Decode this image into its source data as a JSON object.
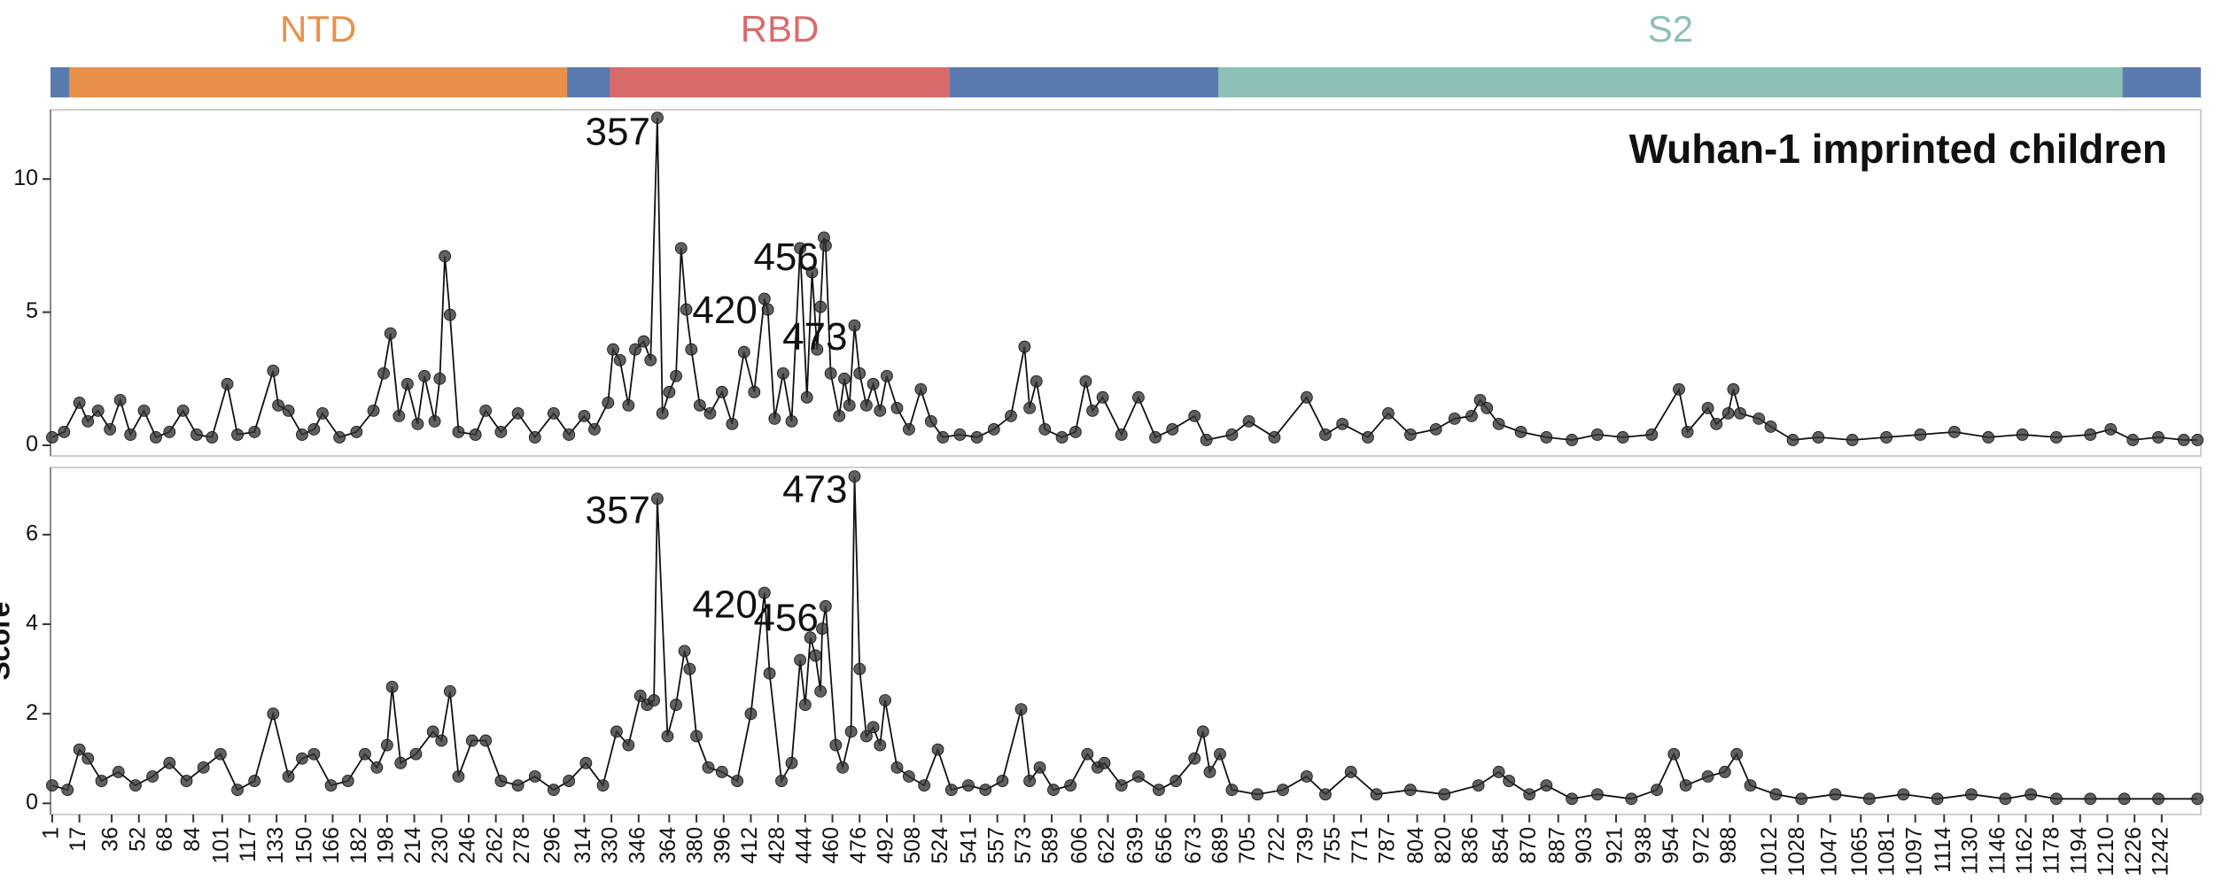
{
  "chart_data": [
    {
      "type": "domain",
      "xlim": [
        0,
        1265
      ],
      "background": "#5a7bb0",
      "domains": [
        {
          "name": "NTD",
          "start": 11,
          "end": 304,
          "color": "#e8914a"
        },
        {
          "name": "RBD",
          "start": 329,
          "end": 529,
          "color": "#d96b6b"
        },
        {
          "name": "S2",
          "start": 687,
          "end": 1219,
          "color": "#8cc0b6"
        }
      ]
    },
    {
      "type": "line",
      "title": "Wuhan-1 imprinted children",
      "xlim": [
        0,
        1265
      ],
      "ylim": [
        -0.4,
        12.6
      ],
      "yticks": [
        0,
        5,
        10
      ],
      "color": "#333333",
      "x": [
        1,
        8,
        17,
        22,
        28,
        35,
        41,
        47,
        55,
        62,
        70,
        78,
        86,
        95,
        104,
        110,
        120,
        131,
        134,
        140,
        148,
        155,
        160,
        170,
        180,
        190,
        196,
        200,
        205,
        210,
        216,
        220,
        226,
        229,
        232,
        235,
        240,
        250,
        256,
        265,
        275,
        285,
        296,
        305,
        314,
        320,
        328,
        331,
        335,
        340,
        344,
        349,
        353,
        357,
        360,
        364,
        368,
        371,
        374,
        377,
        382,
        388,
        395,
        401,
        408,
        414,
        420,
        422,
        426,
        431,
        436,
        441,
        445,
        448,
        451,
        453,
        455,
        456,
        459,
        464,
        467,
        470,
        473,
        476,
        480,
        484,
        488,
        492,
        498,
        505,
        512,
        518,
        525,
        535,
        545,
        555,
        565,
        573,
        576,
        580,
        585,
        595,
        603,
        609,
        613,
        619,
        630,
        640,
        650,
        660,
        673,
        680,
        695,
        705,
        720,
        739,
        750,
        760,
        775,
        787,
        800,
        815,
        826,
        836,
        841,
        845,
        852,
        865,
        880,
        895,
        910,
        925,
        942,
        958,
        963,
        975,
        980,
        987,
        990,
        994,
        1005,
        1012,
        1025,
        1040,
        1060,
        1080,
        1100,
        1120,
        1140,
        1160,
        1180,
        1200,
        1212,
        1225,
        1240,
        1255,
        1263
      ],
      "values": [
        0.3,
        0.5,
        1.6,
        0.9,
        1.3,
        0.6,
        1.7,
        0.4,
        1.3,
        0.3,
        0.5,
        1.3,
        0.4,
        0.3,
        2.3,
        0.4,
        0.5,
        2.8,
        1.5,
        1.3,
        0.4,
        0.6,
        1.2,
        0.3,
        0.5,
        1.3,
        2.7,
        4.2,
        1.1,
        2.3,
        0.8,
        2.6,
        0.9,
        2.5,
        7.1,
        4.9,
        0.5,
        0.4,
        1.3,
        0.5,
        1.2,
        0.3,
        1.2,
        0.4,
        1.1,
        0.6,
        1.6,
        3.6,
        3.2,
        1.5,
        3.6,
        3.9,
        3.2,
        12.3,
        1.2,
        2.0,
        2.6,
        7.4,
        5.1,
        3.6,
        1.5,
        1.2,
        2.0,
        0.8,
        3.5,
        2.0,
        5.5,
        5.1,
        1.0,
        2.7,
        0.9,
        7.4,
        1.8,
        6.5,
        3.6,
        5.2,
        7.8,
        7.5,
        2.7,
        1.1,
        2.5,
        1.5,
        4.5,
        2.7,
        1.5,
        2.3,
        1.3,
        2.6,
        1.4,
        0.6,
        2.1,
        0.9,
        0.3,
        0.4,
        0.3,
        0.6,
        1.1,
        3.7,
        1.4,
        2.4,
        0.6,
        0.3,
        0.5,
        2.4,
        1.3,
        1.8,
        0.4,
        1.8,
        0.3,
        0.6,
        1.1,
        0.2,
        0.4,
        0.9,
        0.3,
        1.8,
        0.4,
        0.8,
        0.3,
        1.2,
        0.4,
        0.6,
        1.0,
        1.1,
        1.7,
        1.4,
        0.8,
        0.5,
        0.3,
        0.2,
        0.4,
        0.3,
        0.4,
        2.1,
        0.5,
        1.4,
        0.8,
        1.2,
        2.1,
        1.2,
        1.0,
        0.7,
        0.2,
        0.3,
        0.2,
        0.3,
        0.4,
        0.5,
        0.3,
        0.4,
        0.3,
        0.4,
        0.6,
        0.2,
        0.3,
        0.2,
        0.2
      ],
      "annotations": [
        {
          "label": "357",
          "x": 357
        },
        {
          "label": "420",
          "x": 420
        },
        {
          "label": "456",
          "x": 456
        },
        {
          "label": "473",
          "x": 473
        }
      ]
    },
    {
      "type": "line",
      "ylabel": "Score",
      "xlim": [
        0,
        1265
      ],
      "ylim": [
        -0.25,
        7.5
      ],
      "yticks": [
        0,
        2,
        4,
        6
      ],
      "color": "#333333",
      "xticks": [
        1,
        17,
        36,
        52,
        68,
        84,
        101,
        117,
        133,
        150,
        166,
        182,
        198,
        214,
        230,
        246,
        262,
        278,
        296,
        314,
        330,
        346,
        364,
        380,
        396,
        412,
        428,
        444,
        460,
        476,
        492,
        508,
        524,
        541,
        557,
        573,
        589,
        606,
        622,
        639,
        656,
        673,
        689,
        705,
        722,
        739,
        755,
        771,
        787,
        804,
        820,
        836,
        854,
        870,
        887,
        903,
        921,
        938,
        954,
        972,
        988,
        1012,
        1028,
        1047,
        1065,
        1081,
        1097,
        1114,
        1130,
        1146,
        1162,
        1178,
        1194,
        1210,
        1226,
        1242
      ],
      "x": [
        1,
        10,
        17,
        22,
        30,
        40,
        50,
        60,
        70,
        80,
        90,
        100,
        110,
        120,
        131,
        140,
        148,
        155,
        165,
        175,
        185,
        192,
        198,
        201,
        206,
        215,
        225,
        230,
        235,
        240,
        248,
        256,
        265,
        275,
        285,
        296,
        305,
        315,
        325,
        333,
        340,
        347,
        351,
        355,
        357,
        363,
        368,
        373,
        376,
        380,
        387,
        395,
        404,
        412,
        420,
        423,
        430,
        436,
        441,
        444,
        447,
        450,
        453,
        454,
        456,
        462,
        466,
        471,
        473,
        476,
        480,
        484,
        488,
        491,
        498,
        505,
        514,
        522,
        530,
        540,
        550,
        560,
        571,
        576,
        582,
        590,
        600,
        610,
        616,
        620,
        630,
        640,
        652,
        662,
        673,
        678,
        682,
        688,
        695,
        710,
        725,
        739,
        750,
        765,
        780,
        800,
        820,
        840,
        852,
        858,
        870,
        880,
        895,
        910,
        930,
        945,
        955,
        962,
        975,
        985,
        992,
        1000,
        1015,
        1030,
        1050,
        1070,
        1090,
        1110,
        1130,
        1150,
        1165,
        1180,
        1200,
        1220,
        1240,
        1263
      ],
      "values": [
        0.4,
        0.3,
        1.2,
        1.0,
        0.5,
        0.7,
        0.4,
        0.6,
        0.9,
        0.5,
        0.8,
        1.1,
        0.3,
        0.5,
        2.0,
        0.6,
        1.0,
        1.1,
        0.4,
        0.5,
        1.1,
        0.8,
        1.3,
        2.6,
        0.9,
        1.1,
        1.6,
        1.4,
        2.5,
        0.6,
        1.4,
        1.4,
        0.5,
        0.4,
        0.6,
        0.3,
        0.5,
        0.9,
        0.4,
        1.6,
        1.3,
        2.4,
        2.2,
        2.3,
        6.8,
        1.5,
        2.2,
        3.4,
        3.0,
        1.5,
        0.8,
        0.7,
        0.5,
        2.0,
        4.7,
        2.9,
        0.5,
        0.9,
        3.2,
        2.2,
        3.7,
        3.3,
        2.5,
        3.9,
        4.4,
        1.3,
        0.8,
        1.6,
        7.3,
        3.0,
        1.5,
        1.7,
        1.3,
        2.3,
        0.8,
        0.6,
        0.4,
        1.2,
        0.3,
        0.4,
        0.3,
        0.5,
        2.1,
        0.5,
        0.8,
        0.3,
        0.4,
        1.1,
        0.8,
        0.9,
        0.4,
        0.6,
        0.3,
        0.5,
        1.0,
        1.6,
        0.7,
        1.1,
        0.3,
        0.2,
        0.3,
        0.6,
        0.2,
        0.7,
        0.2,
        0.3,
        0.2,
        0.4,
        0.7,
        0.5,
        0.2,
        0.4,
        0.1,
        0.2,
        0.1,
        0.3,
        1.1,
        0.4,
        0.6,
        0.7,
        1.1,
        0.4,
        0.2,
        0.1,
        0.2,
        0.1,
        0.2,
        0.1,
        0.2,
        0.1,
        0.2,
        0.1,
        0.1,
        0.1,
        0.1,
        0.1
      ],
      "annotations": [
        {
          "label": "357",
          "x": 357
        },
        {
          "label": "420",
          "x": 420
        },
        {
          "label": "456",
          "x": 456
        },
        {
          "label": "473",
          "x": 473
        }
      ]
    }
  ]
}
